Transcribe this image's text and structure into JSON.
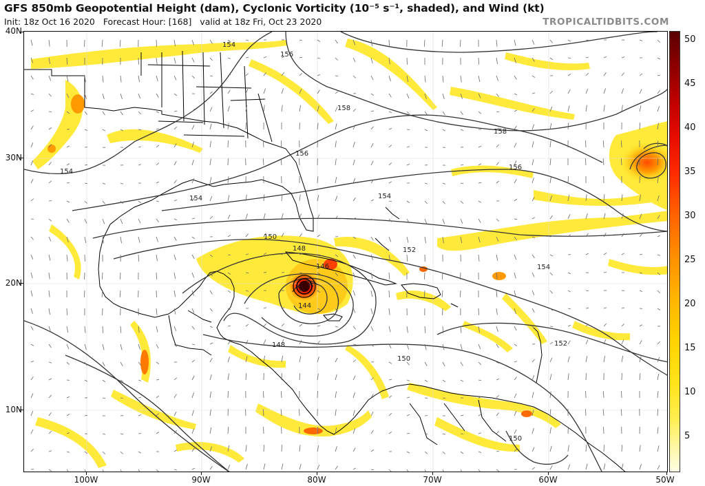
{
  "header": {
    "title": "GFS 850mb Geopotential Height (dam), Cyclonic Vorticity (10⁻⁵ s⁻¹, shaded), and Wind (kt)",
    "init": "Init: 18z Oct 16 2020",
    "forecast_hour": "Forecast Hour: [168]",
    "valid": "valid at 18z Fri, Oct 23 2020",
    "credit": "TROPICALTIDBITS.COM"
  },
  "map": {
    "lat_labels": [
      "40N",
      "30N",
      "20N",
      "10N"
    ],
    "lon_labels": [
      "100W",
      "90W",
      "80W",
      "70W",
      "60W",
      "50W"
    ],
    "height_labels": [
      "154",
      "156",
      "158",
      "154",
      "156",
      "158",
      "156",
      "154",
      "150",
      "148",
      "146",
      "144",
      "148",
      "152",
      "154",
      "150",
      "152",
      "150",
      "154"
    ],
    "colors": {
      "vorticity_low": "#ffee50",
      "vorticity_mid": "#ffb300",
      "vorticity_high": "#e80c00",
      "vorticity_max": "#5a0000",
      "contour": "#333333",
      "coast": "#000000"
    }
  },
  "colorbar": {
    "labels": [
      "50",
      "45",
      "40",
      "35",
      "30",
      "25",
      "20",
      "15",
      "10",
      "5"
    ],
    "unit": "10⁻⁵ s⁻¹"
  }
}
